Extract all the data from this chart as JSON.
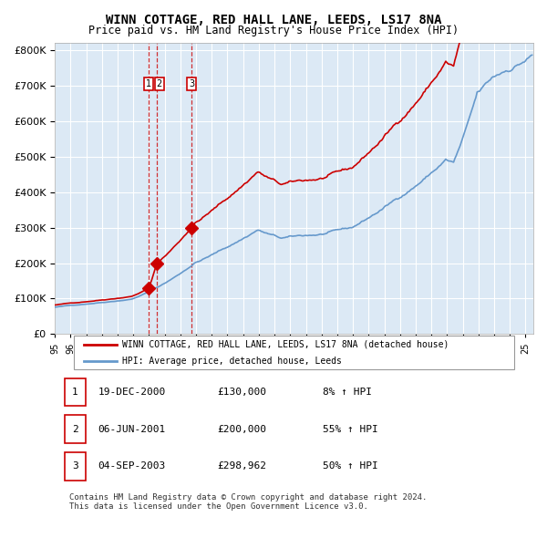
{
  "title": "WINN COTTAGE, RED HALL LANE, LEEDS, LS17 8NA",
  "subtitle": "Price paid vs. HM Land Registry's House Price Index (HPI)",
  "bg_color": "#dce9f5",
  "plot_bg_color": "#dce9f5",
  "grid_color": "#ffffff",
  "red_line_color": "#cc0000",
  "blue_line_color": "#6699cc",
  "sale_marker_color": "#cc0000",
  "dashed_line_color": "#cc0000",
  "legend_label_red": "WINN COTTAGE, RED HALL LANE, LEEDS, LS17 8NA (detached house)",
  "legend_label_blue": "HPI: Average price, detached house, Leeds",
  "sales": [
    {
      "num": 1,
      "date_label": "19-DEC-2000",
      "price": 130000,
      "pct": "8% ↑ HPI",
      "x_year": 2001.0
    },
    {
      "num": 2,
      "date_label": "06-JUN-2001",
      "price": 200000,
      "pct": "55% ↑ HPI",
      "x_year": 2001.5
    },
    {
      "num": 3,
      "date_label": "04-SEP-2003",
      "price": 298962,
      "pct": "50% ↑ HPI",
      "x_year": 2003.7
    }
  ],
  "table_rows": [
    {
      "num": 1,
      "date": "19-DEC-2000",
      "price": "£130,000",
      "pct": "8% ↑ HPI"
    },
    {
      "num": 2,
      "date": "06-JUN-2001",
      "price": "£200,000",
      "pct": "55% ↑ HPI"
    },
    {
      "num": 3,
      "date": "04-SEP-2003",
      "price": "£298,962",
      "pct": "50% ↑ HPI"
    }
  ],
  "footer": "Contains HM Land Registry data © Crown copyright and database right 2024.\nThis data is licensed under the Open Government Licence v3.0.",
  "ylim": [
    0,
    820000
  ],
  "xlim_start": 1995.0,
  "xlim_end": 2025.5
}
